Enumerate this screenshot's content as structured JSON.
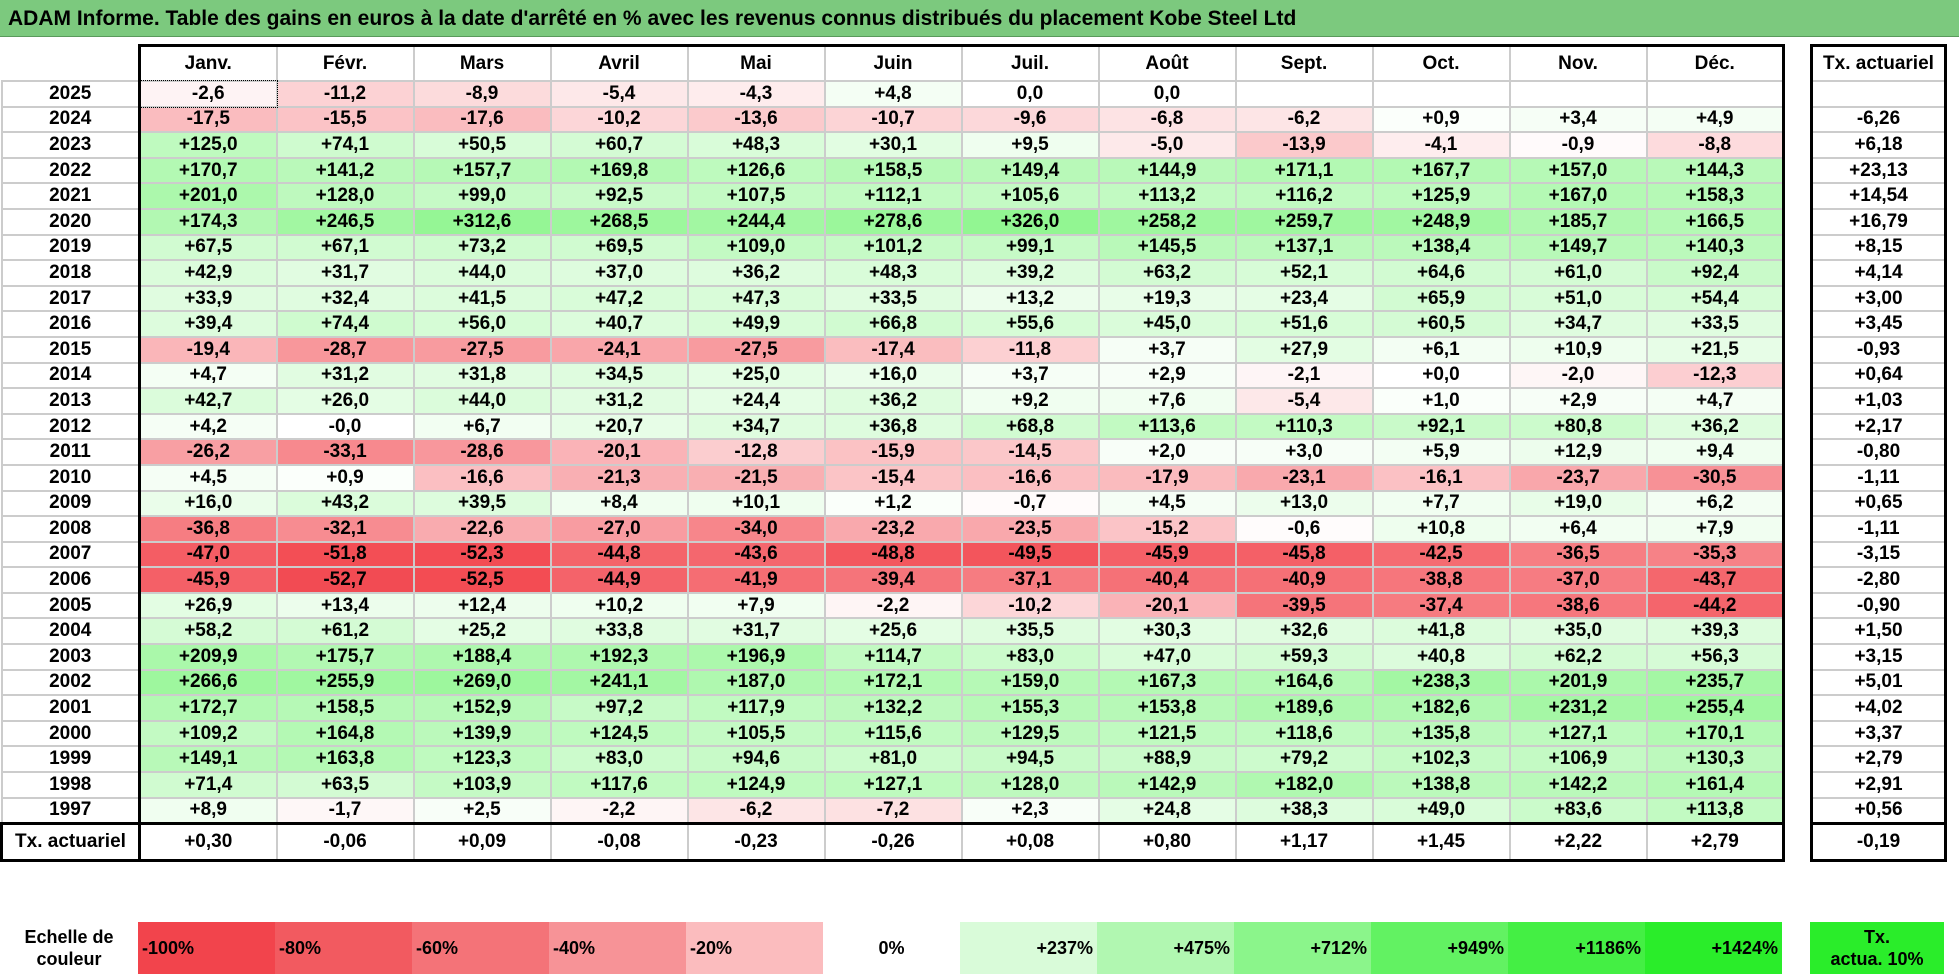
{
  "title": "ADAM Informe. Table des gains en euros à la date d'arrêté en % avec les revenus connus distribués du placement Kobe Steel Ltd",
  "months": [
    "Janv.",
    "Févr.",
    "Mars",
    "Avril",
    "Mai",
    "Juin",
    "Juil.",
    "Août",
    "Sept.",
    "Oct.",
    "Nov.",
    "Déc."
  ],
  "actuarial_header": "Tx. actuariel",
  "rows": [
    {
      "year": "2025",
      "values": [
        "-2,6",
        "-11,2",
        "-8,9",
        "-5,4",
        "-4,3",
        "+4,8",
        "0,0",
        "0,0",
        "",
        "",
        "",
        ""
      ],
      "rate": ""
    },
    {
      "year": "2024",
      "values": [
        "-17,5",
        "-15,5",
        "-17,6",
        "-10,2",
        "-13,6",
        "-10,7",
        "-9,6",
        "-6,8",
        "-6,2",
        "+0,9",
        "+3,4",
        "+4,9"
      ],
      "rate": "-6,26"
    },
    {
      "year": "2023",
      "values": [
        "+125,0",
        "+74,1",
        "+50,5",
        "+60,7",
        "+48,3",
        "+30,1",
        "+9,5",
        "-5,0",
        "-13,9",
        "-4,1",
        "-0,9",
        "-8,8"
      ],
      "rate": "+6,18"
    },
    {
      "year": "2022",
      "values": [
        "+170,7",
        "+141,2",
        "+157,7",
        "+169,8",
        "+126,6",
        "+158,5",
        "+149,4",
        "+144,9",
        "+171,1",
        "+167,7",
        "+157,0",
        "+144,3"
      ],
      "rate": "+23,13"
    },
    {
      "year": "2021",
      "values": [
        "+201,0",
        "+128,0",
        "+99,0",
        "+92,5",
        "+107,5",
        "+112,1",
        "+105,6",
        "+113,2",
        "+116,2",
        "+125,9",
        "+167,0",
        "+158,3"
      ],
      "rate": "+14,54"
    },
    {
      "year": "2020",
      "values": [
        "+174,3",
        "+246,5",
        "+312,6",
        "+268,5",
        "+244,4",
        "+278,6",
        "+326,0",
        "+258,2",
        "+259,7",
        "+248,9",
        "+185,7",
        "+166,5"
      ],
      "rate": "+16,79"
    },
    {
      "year": "2019",
      "values": [
        "+67,5",
        "+67,1",
        "+73,2",
        "+69,5",
        "+109,0",
        "+101,2",
        "+99,1",
        "+145,5",
        "+137,1",
        "+138,4",
        "+149,7",
        "+140,3"
      ],
      "rate": "+8,15"
    },
    {
      "year": "2018",
      "values": [
        "+42,9",
        "+31,7",
        "+44,0",
        "+37,0",
        "+36,2",
        "+48,3",
        "+39,2",
        "+63,2",
        "+52,1",
        "+64,6",
        "+61,0",
        "+92,4"
      ],
      "rate": "+4,14"
    },
    {
      "year": "2017",
      "values": [
        "+33,9",
        "+32,4",
        "+41,5",
        "+47,2",
        "+47,3",
        "+33,5",
        "+13,2",
        "+19,3",
        "+23,4",
        "+65,9",
        "+51,0",
        "+54,4"
      ],
      "rate": "+3,00"
    },
    {
      "year": "2016",
      "values": [
        "+39,4",
        "+74,4",
        "+56,0",
        "+40,7",
        "+49,9",
        "+66,8",
        "+55,6",
        "+45,0",
        "+51,6",
        "+60,5",
        "+34,7",
        "+33,5"
      ],
      "rate": "+3,45"
    },
    {
      "year": "2015",
      "values": [
        "-19,4",
        "-28,7",
        "-27,5",
        "-24,1",
        "-27,5",
        "-17,4",
        "-11,8",
        "+3,7",
        "+27,9",
        "+6,1",
        "+10,9",
        "+21,5"
      ],
      "rate": "-0,93"
    },
    {
      "year": "2014",
      "values": [
        "+4,7",
        "+31,2",
        "+31,8",
        "+34,5",
        "+25,0",
        "+16,0",
        "+3,7",
        "+2,9",
        "-2,1",
        "+0,0",
        "-2,0",
        "-12,3"
      ],
      "rate": "+0,64"
    },
    {
      "year": "2013",
      "values": [
        "+42,7",
        "+26,0",
        "+44,0",
        "+31,2",
        "+24,4",
        "+36,2",
        "+9,2",
        "+7,6",
        "-5,4",
        "+1,0",
        "+2,9",
        "+4,7"
      ],
      "rate": "+1,03"
    },
    {
      "year": "2012",
      "values": [
        "+4,2",
        "-0,0",
        "+6,7",
        "+20,7",
        "+34,7",
        "+36,8",
        "+68,8",
        "+113,6",
        "+110,3",
        "+92,1",
        "+80,8",
        "+36,2"
      ],
      "rate": "+2,17"
    },
    {
      "year": "2011",
      "values": [
        "-26,2",
        "-33,1",
        "-28,6",
        "-20,1",
        "-12,8",
        "-15,9",
        "-14,5",
        "+2,0",
        "+3,0",
        "+5,9",
        "+12,9",
        "+9,4"
      ],
      "rate": "-0,80"
    },
    {
      "year": "2010",
      "values": [
        "+4,5",
        "+0,9",
        "-16,6",
        "-21,3",
        "-21,5",
        "-15,4",
        "-16,6",
        "-17,9",
        "-23,1",
        "-16,1",
        "-23,7",
        "-30,5"
      ],
      "rate": "-1,11"
    },
    {
      "year": "2009",
      "values": [
        "+16,0",
        "+43,2",
        "+39,5",
        "+8,4",
        "+10,1",
        "+1,2",
        "-0,7",
        "+4,5",
        "+13,0",
        "+7,7",
        "+19,0",
        "+6,2"
      ],
      "rate": "+0,65"
    },
    {
      "year": "2008",
      "values": [
        "-36,8",
        "-32,1",
        "-22,6",
        "-27,0",
        "-34,0",
        "-23,2",
        "-23,5",
        "-15,2",
        "-0,6",
        "+10,8",
        "+6,4",
        "+7,9"
      ],
      "rate": "-1,11"
    },
    {
      "year": "2007",
      "values": [
        "-47,0",
        "-51,8",
        "-52,3",
        "-44,8",
        "-43,6",
        "-48,8",
        "-49,5",
        "-45,9",
        "-45,8",
        "-42,5",
        "-36,5",
        "-35,3"
      ],
      "rate": "-3,15"
    },
    {
      "year": "2006",
      "values": [
        "-45,9",
        "-52,7",
        "-52,5",
        "-44,9",
        "-41,9",
        "-39,4",
        "-37,1",
        "-40,4",
        "-40,9",
        "-38,8",
        "-37,0",
        "-43,7"
      ],
      "rate": "-2,80"
    },
    {
      "year": "2005",
      "values": [
        "+26,9",
        "+13,4",
        "+12,4",
        "+10,2",
        "+7,9",
        "-2,2",
        "-10,2",
        "-20,1",
        "-39,5",
        "-37,4",
        "-38,6",
        "-44,2"
      ],
      "rate": "-0,90"
    },
    {
      "year": "2004",
      "values": [
        "+58,2",
        "+61,2",
        "+25,2",
        "+33,8",
        "+31,7",
        "+25,6",
        "+35,5",
        "+30,3",
        "+32,6",
        "+41,8",
        "+35,0",
        "+39,3"
      ],
      "rate": "+1,50"
    },
    {
      "year": "2003",
      "values": [
        "+209,9",
        "+175,7",
        "+188,4",
        "+192,3",
        "+196,9",
        "+114,7",
        "+83,0",
        "+47,0",
        "+59,3",
        "+40,8",
        "+62,2",
        "+56,3"
      ],
      "rate": "+3,15"
    },
    {
      "year": "2002",
      "values": [
        "+266,6",
        "+255,9",
        "+269,0",
        "+241,1",
        "+187,0",
        "+172,1",
        "+159,0",
        "+167,3",
        "+164,6",
        "+238,3",
        "+201,9",
        "+235,7"
      ],
      "rate": "+5,01"
    },
    {
      "year": "2001",
      "values": [
        "+172,7",
        "+158,5",
        "+152,9",
        "+97,2",
        "+117,9",
        "+132,2",
        "+155,3",
        "+153,8",
        "+189,6",
        "+182,6",
        "+231,2",
        "+255,4"
      ],
      "rate": "+4,02"
    },
    {
      "year": "2000",
      "values": [
        "+109,2",
        "+164,8",
        "+139,9",
        "+124,5",
        "+105,5",
        "+115,6",
        "+129,5",
        "+121,5",
        "+118,6",
        "+135,8",
        "+127,1",
        "+170,1"
      ],
      "rate": "+3,37"
    },
    {
      "year": "1999",
      "values": [
        "+149,1",
        "+163,8",
        "+123,3",
        "+83,0",
        "+94,6",
        "+81,0",
        "+94,5",
        "+88,9",
        "+79,2",
        "+102,3",
        "+106,9",
        "+130,3"
      ],
      "rate": "+2,79"
    },
    {
      "year": "1998",
      "values": [
        "+71,4",
        "+63,5",
        "+103,9",
        "+117,6",
        "+124,9",
        "+127,1",
        "+128,0",
        "+142,9",
        "+182,0",
        "+138,8",
        "+142,2",
        "+161,4"
      ],
      "rate": "+2,91"
    },
    {
      "year": "1997",
      "values": [
        "+8,9",
        "-1,7",
        "+2,5",
        "-2,2",
        "-6,2",
        "-7,2",
        "+2,3",
        "+24,8",
        "+38,3",
        "+49,0",
        "+83,6",
        "+113,8"
      ],
      "rate": "+0,56"
    }
  ],
  "totals": {
    "label": "Tx. actuariel",
    "values": [
      "+0,30",
      "-0,06",
      "+0,09",
      "-0,08",
      "-0,23",
      "-0,26",
      "+0,08",
      "+0,80",
      "+1,17",
      "+1,45",
      "+2,22",
      "+2,79"
    ],
    "rate": "-0,19"
  },
  "scale": {
    "label_line1": "Echelle de",
    "label_line2": "couleur",
    "items": [
      {
        "text": "-100%",
        "color": "#f2444c"
      },
      {
        "text": "-80%",
        "color": "#f25a60"
      },
      {
        "text": "-60%",
        "color": "#f47378"
      },
      {
        "text": "-40%",
        "color": "#f79397"
      },
      {
        "text": "-20%",
        "color": "#fbbcbe"
      },
      {
        "text": "0%",
        "color": "#ffffff"
      },
      {
        "text": "+237%",
        "color": "#d9fbd9"
      },
      {
        "text": "+475%",
        "color": "#b1f7b1"
      },
      {
        "text": "+712%",
        "color": "#8bf58b"
      },
      {
        "text": "+949%",
        "color": "#62f262"
      },
      {
        "text": "+1186%",
        "color": "#44ef44"
      },
      {
        "text": "+1424%",
        "color": "#2aed2a"
      }
    ],
    "actuarial_line1": "Tx.",
    "actuarial_line2": "actua. 10%",
    "actuarial_color": "#2aed2a"
  },
  "colors": {
    "title_bar": "#7cc97e",
    "negative_full": "#f2444c",
    "positive_full": "#2aed2a"
  }
}
